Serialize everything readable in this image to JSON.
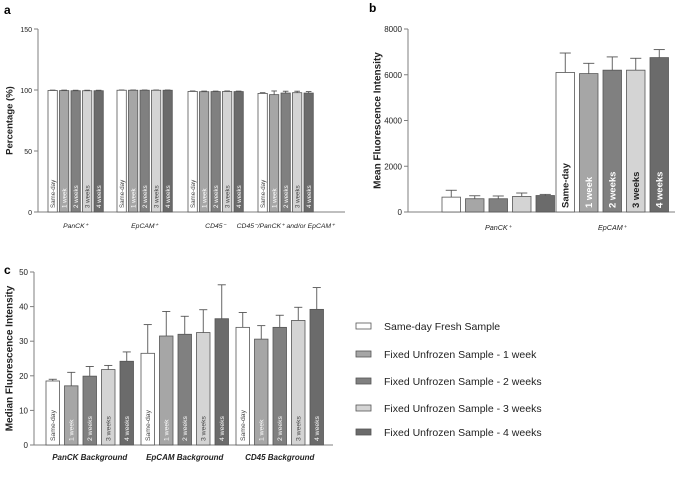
{
  "colors": {
    "same_day": "#ffffff",
    "week1": "#a6a6a6",
    "week2": "#808080",
    "week3": "#d4d4d4",
    "week4": "#6b6b6b",
    "axis": "#7f7f7f",
    "text": "#222222"
  },
  "legend": {
    "entries": [
      "Same-day Fresh Sample",
      "Fixed Unfrozen Sample - 1 week",
      "Fixed Unfrozen Sample - 2 weeks",
      "Fixed Unfrozen Sample - 3 weeks",
      "Fixed Unfrozen Sample - 4 weeks"
    ]
  },
  "chart_data": [
    {
      "panel": "a",
      "type": "bar",
      "title": "",
      "ylabel": "Percentage (%)",
      "xlabel": "",
      "ylim": [
        0,
        150
      ],
      "yticks": [
        0,
        50,
        100,
        150
      ],
      "tick_labels": [
        "0",
        "50",
        "100",
        "150"
      ],
      "categories": [
        "PanCK⁺",
        "EpCAM⁺",
        "CD45⁻",
        "CD45⁻/PanCK⁺ and/or EpCAM⁺"
      ],
      "bar_labels": [
        "Same-day",
        "1 week",
        "2 weeks",
        "3 weeks",
        "4 weeks"
      ],
      "series": [
        {
          "name": "Same-day",
          "values": [
            99.6,
            99.8,
            98.8,
            97.2
          ],
          "errors": [
            0.3,
            0.2,
            0.4,
            0.6
          ]
        },
        {
          "name": "1 week",
          "values": [
            99.5,
            99.8,
            98.6,
            96.2
          ],
          "errors": [
            0.4,
            0.2,
            0.5,
            3.0
          ]
        },
        {
          "name": "2 weeks",
          "values": [
            99.4,
            99.8,
            98.7,
            97.5
          ],
          "errors": [
            0.4,
            0.2,
            0.4,
            1.5
          ]
        },
        {
          "name": "3 weeks",
          "values": [
            99.4,
            99.8,
            98.8,
            97.8
          ],
          "errors": [
            0.4,
            0.2,
            0.4,
            1.2
          ]
        },
        {
          "name": "4 weeks",
          "values": [
            99.4,
            99.8,
            98.7,
            97.5
          ],
          "errors": [
            0.4,
            0.2,
            0.4,
            1.2
          ]
        }
      ]
    },
    {
      "panel": "b",
      "type": "bar",
      "title": "",
      "ylabel": "Mean Fluorescence Intensity",
      "xlabel": "",
      "ylim": [
        0,
        8000
      ],
      "yticks": [
        0,
        2000,
        4000,
        6000,
        8000
      ],
      "tick_labels": [
        "0",
        "2000",
        "4000",
        "6000",
        "8000"
      ],
      "categories": [
        "PanCK⁺",
        "EpCAM⁺"
      ],
      "bar_labels": [
        "Same-day",
        "1 week",
        "2 weeks",
        "3 weeks",
        "4 weeks"
      ],
      "series": [
        {
          "name": "Same-day",
          "values": [
            650,
            6100
          ],
          "errors": [
            300,
            850
          ]
        },
        {
          "name": "1 week",
          "values": [
            580,
            6050
          ],
          "errors": [
            130,
            450
          ]
        },
        {
          "name": "2 weeks",
          "values": [
            580,
            6200
          ],
          "errors": [
            120,
            580
          ]
        },
        {
          "name": "3 weeks",
          "values": [
            680,
            6200
          ],
          "errors": [
            150,
            520
          ]
        },
        {
          "name": "4 weeks",
          "values": [
            720,
            6750
          ],
          "errors": [
            50,
            350
          ]
        }
      ]
    },
    {
      "panel": "c",
      "type": "bar",
      "title": "",
      "ylabel": "Median Fluorescence Intensity",
      "xlabel": "",
      "ylim": [
        0,
        50
      ],
      "yticks": [
        0,
        10,
        20,
        30,
        40,
        50
      ],
      "tick_labels": [
        "0",
        "10",
        "20",
        "30",
        "40",
        "50"
      ],
      "categories": [
        "PanCK Background",
        "EpCAM Background",
        "CD45 Background"
      ],
      "bar_labels": [
        "Same-day",
        "1 week",
        "2 weeks",
        "3 weeks",
        "4 weeks"
      ],
      "series": [
        {
          "name": "Same-day",
          "values": [
            18.5,
            26.5,
            34.0
          ],
          "errors": [
            0.5,
            8.3,
            4.3
          ]
        },
        {
          "name": "1 week",
          "values": [
            17.1,
            31.5,
            30.6
          ],
          "errors": [
            3.9,
            7.1,
            3.9
          ]
        },
        {
          "name": "2 weeks",
          "values": [
            19.9,
            32.0,
            34.0
          ],
          "errors": [
            2.8,
            5.2,
            3.5
          ]
        },
        {
          "name": "3 weeks",
          "values": [
            21.8,
            32.5,
            36.0
          ],
          "errors": [
            1.2,
            6.6,
            3.8
          ]
        },
        {
          "name": "4 weeks",
          "values": [
            24.2,
            36.5,
            39.2
          ],
          "errors": [
            2.7,
            9.8,
            6.3
          ]
        }
      ]
    }
  ]
}
